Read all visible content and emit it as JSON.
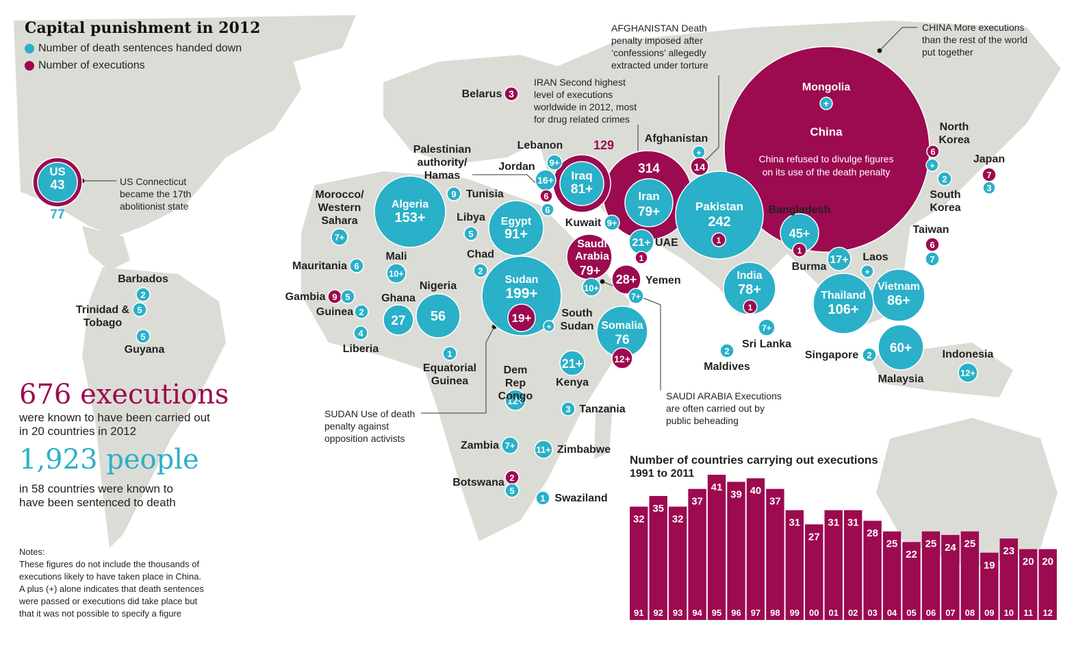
{
  "title": "Capital punishment in 2012",
  "legend": [
    {
      "label": "Number of death sentences handed down",
      "color": "#2ab0c8"
    },
    {
      "label": "Number of executions",
      "color": "#a0004f"
    }
  ],
  "colors": {
    "sentences": "#2ab0c8",
    "executions": "#9c0a50",
    "land": "#dcdcd6"
  },
  "stats": {
    "executions_big": "676 executions",
    "executions_sub": "were known to have been carried out\nin 20 countries in 2012",
    "people_big": "1,923 people",
    "people_sub": "in 58 countries were known to\nhave been sentenced to death"
  },
  "notes": {
    "heading": "Notes:",
    "body": "These figures do not include the thousands of\nexecutions likely to have taken place in China.\nA plus (+) alone indicates that death sentences\nwere passed or executions did take place but\nthat it was not possible to specify a figure"
  },
  "callouts": {
    "us": "US Connecticut\nbecame the 17th\nabolitionist state",
    "afghanistan": "AFGHANISTAN Death\npenalty imposed after\n‘confessions’ allegedly\nextracted under torture",
    "china": "CHINA More executions\nthan the rest of the world\nput together",
    "iran": "IRAN Second highest\nlevel of executions\nworldwide in 2012, most\nfor drug related crimes",
    "sudan": "SUDAN Use of death\npenalty against\nopposition activists",
    "saudi": "SAUDI ARABIA Executions\nare often carried out by\npublic beheading"
  },
  "countries": [
    {
      "name": "US",
      "sentences": "77",
      "executions": "43"
    },
    {
      "name": "China",
      "executions": "Thousands",
      "note": "China refused to divulge figures\non its use of the death penalty"
    },
    {
      "name": "Mongolia",
      "sentences": "+"
    },
    {
      "name": "Iran",
      "sentences": "79+",
      "executions": "314"
    },
    {
      "name": "Iraq",
      "sentences": "81+",
      "executions": "129"
    },
    {
      "name": "Saudi Arabia",
      "executions": "79+",
      "sentences": "10+"
    },
    {
      "name": "Yemen",
      "executions": "28+",
      "sentences": "7+"
    },
    {
      "name": "Pakistan",
      "sentences": "242",
      "executions": "1"
    },
    {
      "name": "Afghanistan",
      "sentences": "+",
      "executions": "14"
    },
    {
      "name": "Algeria",
      "sentences": "153+"
    },
    {
      "name": "Egypt",
      "sentences": "91+"
    },
    {
      "name": "Sudan",
      "sentences": "199+",
      "executions": "19+"
    },
    {
      "name": "Somalia",
      "sentences": "76",
      "executions": "12+"
    },
    {
      "name": "India",
      "sentences": "78+",
      "executions": "1"
    },
    {
      "name": "Bangladesh",
      "sentences": "45+",
      "executions": "1"
    },
    {
      "name": "Thailand",
      "sentences": "106+"
    },
    {
      "name": "Vietnam",
      "sentences": "86+"
    },
    {
      "name": "Malaysia",
      "sentences": "60+"
    },
    {
      "name": "Nigeria",
      "sentences": "56"
    },
    {
      "name": "Ghana",
      "sentences": "27"
    },
    {
      "name": "Kenya",
      "sentences": "21+"
    },
    {
      "name": "Lebanon",
      "sentences": "9+"
    },
    {
      "name": "Jordan",
      "sentences": "16+"
    },
    {
      "name": "Kuwait",
      "sentences": "9+"
    },
    {
      "name": "UAE",
      "sentences": "21+",
      "executions": "1"
    },
    {
      "name": "Palestinian authority/ Hamas",
      "executions": "6",
      "sentences": "6"
    },
    {
      "name": "Belarus",
      "executions": "3"
    },
    {
      "name": "Tunisia",
      "sentences": "9"
    },
    {
      "name": "Libya",
      "sentences": "5"
    },
    {
      "name": "Chad",
      "sentences": "2"
    },
    {
      "name": "Morocco/ Western Sahara",
      "sentences": "7+"
    },
    {
      "name": "Mauritania",
      "sentences": "6"
    },
    {
      "name": "Mali",
      "sentences": "10+"
    },
    {
      "name": "Gambia",
      "executions": "9",
      "sentences": "5"
    },
    {
      "name": "Guinea",
      "sentences": "2"
    },
    {
      "name": "Liberia",
      "sentences": "4"
    },
    {
      "name": "Equatorial Guinea",
      "sentences": "1"
    },
    {
      "name": "Dem Rep Congo",
      "sentences": "12+"
    },
    {
      "name": "South Sudan",
      "sentences": "+"
    },
    {
      "name": "Tanzania",
      "sentences": "3"
    },
    {
      "name": "Zambia",
      "sentences": "7+"
    },
    {
      "name": "Zimbabwe",
      "sentences": "11+"
    },
    {
      "name": "Botswana",
      "executions": "2",
      "sentences": "5"
    },
    {
      "name": "Swaziland",
      "sentences": "1"
    },
    {
      "name": "Barbados",
      "sentences": "2"
    },
    {
      "name": "Trinidad & Tobago",
      "sentences": "5"
    },
    {
      "name": "Guyana",
      "sentences": "5"
    },
    {
      "name": "Sri Lanka",
      "sentences": "7+"
    },
    {
      "name": "Maldives",
      "sentences": "2"
    },
    {
      "name": "Singapore",
      "sentences": "2"
    },
    {
      "name": "Indonesia",
      "sentences": "12+"
    },
    {
      "name": "Laos",
      "sentences": "+"
    },
    {
      "name": "Burma",
      "sentences": "17+"
    },
    {
      "name": "North Korea",
      "executions": "6",
      "sentences": "+"
    },
    {
      "name": "South Korea",
      "sentences": "2"
    },
    {
      "name": "Japan",
      "executions": "7",
      "sentences": "3"
    },
    {
      "name": "Taiwan",
      "executions": "6",
      "sentences": "7"
    }
  ],
  "chart_data": {
    "type": "bar",
    "title": "Number of countries carrying out executions",
    "subtitle": "1991 to 2011",
    "categories": [
      "91",
      "92",
      "93",
      "94",
      "95",
      "96",
      "97",
      "98",
      "99",
      "00",
      "01",
      "02",
      "03",
      "04",
      "05",
      "06",
      "07",
      "08",
      "09",
      "10",
      "11",
      "12"
    ],
    "values": [
      32,
      35,
      32,
      37,
      41,
      39,
      40,
      37,
      31,
      27,
      31,
      31,
      28,
      25,
      22,
      25,
      24,
      25,
      19,
      23,
      20,
      20
    ],
    "ylim": [
      0,
      41
    ],
    "grid": false,
    "color": "#9c0a50"
  }
}
